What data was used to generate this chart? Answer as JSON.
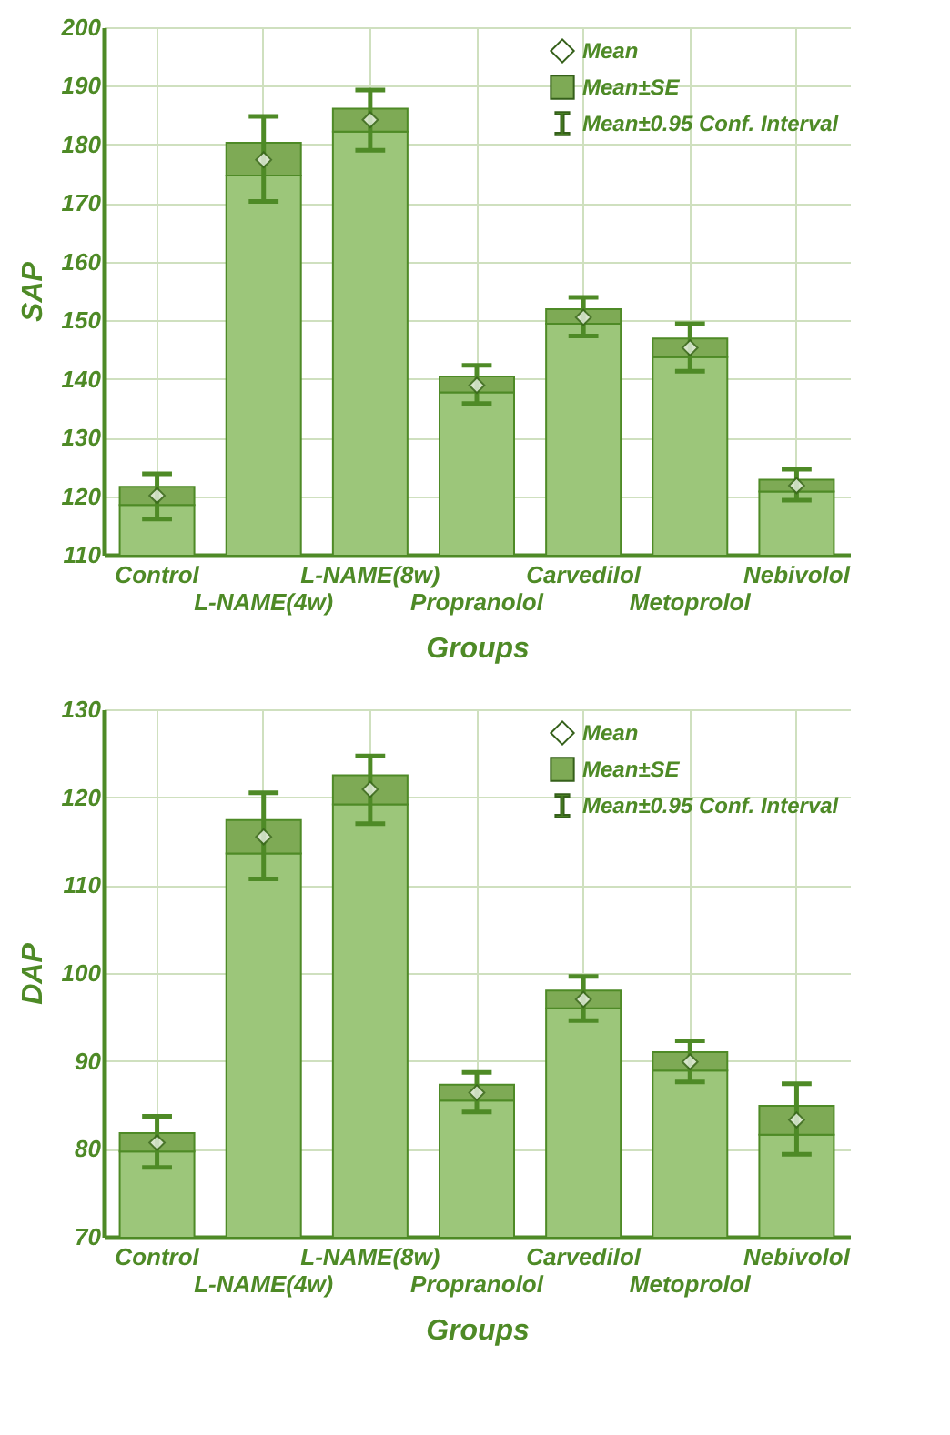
{
  "chart_data": [
    {
      "type": "bar",
      "stacked": true,
      "xlabel": "Groups",
      "ylabel": "SAP",
      "ylim": [
        110,
        200
      ],
      "yticks": [
        110,
        120,
        130,
        140,
        150,
        160,
        170,
        180,
        190,
        200
      ],
      "grid": true,
      "legend": "top right",
      "annotations": [
        "Mean±0.95 Conf. Interval"
      ],
      "categories": [
        "Control",
        "L-NAME(4w)",
        "L-NAME(8w)",
        "Propranolol",
        "Carvedilol",
        "Metoprolol",
        "Nebivolol"
      ],
      "series": [
        {
          "color": "#9cc67a",
          "values": [
            118.5,
            174.7,
            182.2,
            137.7,
            149.4,
            143.7,
            120.8
          ]
        },
        {
          "name": "Mean±SE",
          "color": "#7eaa55",
          "base": [
            118.5,
            174.7,
            182.2,
            137.7,
            149.4,
            143.7,
            120.8
          ],
          "values": [
            3.1,
            5.6,
            3.9,
            2.7,
            2.5,
            3.2,
            2.0
          ]
        },
        {
          "type": "scatter",
          "name": "Mean",
          "color": "#ffffff",
          "marker": "diamond",
          "values": [
            120.1,
            177.4,
            184.2,
            138.9,
            150.5,
            145.3,
            121.8
          ],
          "errors": [
            [
              116.1,
              123.8
            ],
            [
              170.3,
              184.8
            ],
            [
              179.0,
              189.3
            ],
            [
              135.8,
              142.3
            ],
            [
              147.3,
              153.9
            ],
            [
              141.3,
              149.4
            ],
            [
              119.3,
              124.6
            ]
          ]
        }
      ]
    },
    {
      "type": "bar",
      "stacked": true,
      "xlabel": "Groups",
      "ylabel": "DAP",
      "ylim": [
        70,
        130
      ],
      "yticks": [
        70,
        80,
        90,
        100,
        110,
        120,
        130
      ],
      "grid": true,
      "legend": "top right",
      "annotations": [
        "Mean±0.95 Conf. Interval"
      ],
      "categories": [
        "Control",
        "L-NAME(4w)",
        "L-NAME(8w)",
        "Propranolol",
        "Carvedilol",
        "Metoprolol",
        "Nebivolol"
      ],
      "series": [
        {
          "color": "#9cc67a",
          "values": [
            79.7,
            113.6,
            119.2,
            85.5,
            96.0,
            88.9,
            81.6
          ]
        },
        {
          "name": "Mean±SE",
          "color": "#7eaa55",
          "base": [
            79.7,
            113.6,
            119.2,
            85.5,
            96.0,
            88.9,
            81.6
          ],
          "values": [
            2.1,
            3.8,
            3.3,
            1.8,
            2.0,
            2.1,
            3.3
          ]
        },
        {
          "type": "scatter",
          "name": "Mean",
          "color": "#ffffff",
          "marker": "diamond",
          "values": [
            80.7,
            115.5,
            120.9,
            86.4,
            97.0,
            89.9,
            83.3
          ],
          "errors": [
            [
              77.9,
              83.7
            ],
            [
              110.7,
              120.5
            ],
            [
              117.0,
              124.7
            ],
            [
              84.2,
              88.7
            ],
            [
              94.6,
              99.6
            ],
            [
              87.6,
              92.3
            ],
            [
              79.4,
              87.4
            ]
          ]
        }
      ]
    }
  ]
}
